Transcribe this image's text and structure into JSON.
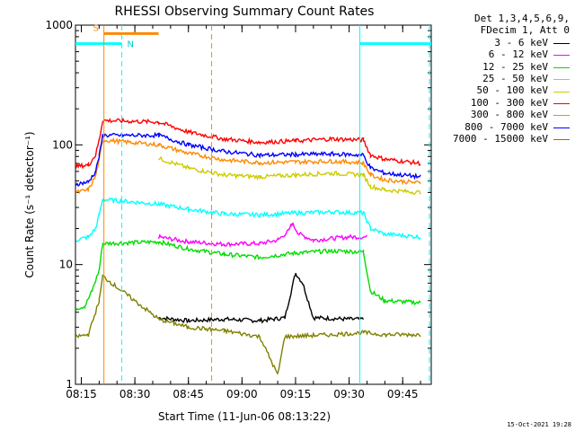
{
  "chart_data": {
    "type": "line",
    "title": "RHESSI Observing Summary Count Rates",
    "xlabel": "Start Time (11-Jun-06 08:13:22)",
    "ylabel": "Count Rate (s⁻¹ detector⁻¹)",
    "yscale": "log",
    "ylim": [
      1,
      1000
    ],
    "xlim": [
      "08:13:22",
      "09:53:00"
    ],
    "x_ticks": [
      "08:15",
      "08:30",
      "08:45",
      "09:00",
      "09:15",
      "09:30",
      "09:45"
    ],
    "y_ticks": [
      1,
      10,
      100,
      1000
    ],
    "y_tick_labels": [
      "1",
      "10",
      "100",
      "1000"
    ],
    "legend_header": [
      "Det 1,3,4,5,6,9,",
      "FDecim 1, Att 0"
    ],
    "legend_position": "right",
    "series": [
      {
        "name": "3 - 6 keV",
        "color": "#000000",
        "points": [
          [
            "08:13:30",
            null
          ],
          [
            "08:36:40",
            3.6
          ],
          [
            "08:45",
            3.4
          ],
          [
            "08:55",
            3.5
          ],
          [
            "09:05",
            3.4
          ],
          [
            "09:12",
            3.6
          ],
          [
            "09:15",
            8.5
          ],
          [
            "09:17",
            7.0
          ],
          [
            "09:20",
            3.6
          ],
          [
            "09:30",
            3.5
          ],
          [
            "09:34",
            3.5
          ]
        ]
      },
      {
        "name": "6 - 12 keV",
        "color": "#ff00ff",
        "points": [
          [
            "08:13:30",
            null
          ],
          [
            "08:36:40",
            17
          ],
          [
            "08:45",
            15.5
          ],
          [
            "08:55",
            14.8
          ],
          [
            "09:05",
            15
          ],
          [
            "09:10",
            16
          ],
          [
            "09:13",
            19
          ],
          [
            "09:14",
            22
          ],
          [
            "09:16",
            18
          ],
          [
            "09:20",
            16
          ],
          [
            "09:30",
            17
          ],
          [
            "09:35",
            17
          ]
        ]
      },
      {
        "name": "12 - 25 keV",
        "color": "#00dd00",
        "points": [
          [
            "08:13:30",
            4.3
          ],
          [
            "08:16",
            4.5
          ],
          [
            "08:18",
            6
          ],
          [
            "08:20",
            9
          ],
          [
            "08:21",
            15
          ],
          [
            "08:36:40",
            15.5
          ],
          [
            "08:45",
            13.5
          ],
          [
            "08:55",
            12.2
          ],
          [
            "09:05",
            11.5
          ],
          [
            "09:15",
            12.5
          ],
          [
            "09:25",
            13
          ],
          [
            "09:34",
            12.8
          ],
          [
            "09:36",
            6
          ],
          [
            "09:40",
            5
          ],
          [
            "09:50",
            4.8
          ]
        ]
      },
      {
        "name": "25 - 50 keV",
        "color": "#00ffff",
        "points": [
          [
            "08:13:30",
            16
          ],
          [
            "08:17",
            17
          ],
          [
            "08:19",
            20
          ],
          [
            "08:20",
            26
          ],
          [
            "08:21",
            35
          ],
          [
            "08:36:40",
            32
          ],
          [
            "08:45",
            29
          ],
          [
            "08:55",
            26.5
          ],
          [
            "09:05",
            26
          ],
          [
            "09:15",
            27
          ],
          [
            "09:25",
            27.5
          ],
          [
            "09:34",
            27
          ],
          [
            "09:36",
            20
          ],
          [
            "09:40",
            18
          ],
          [
            "09:50",
            17
          ]
        ]
      },
      {
        "name": "50 - 100 keV",
        "color": "#cccc00",
        "points": [
          [
            "08:36:40",
            77
          ],
          [
            "08:45",
            64
          ],
          [
            "08:55",
            56
          ],
          [
            "09:05",
            54
          ],
          [
            "09:15",
            56
          ],
          [
            "09:25",
            58
          ],
          [
            "09:34",
            56
          ],
          [
            "09:36",
            45
          ],
          [
            "09:40",
            42
          ],
          [
            "09:50",
            40
          ]
        ]
      },
      {
        "name": "100 - 300 keV",
        "color": "#ff0000",
        "points": [
          [
            "08:13:30",
            66
          ],
          [
            "08:17",
            68
          ],
          [
            "08:19",
            82
          ],
          [
            "08:20",
            110
          ],
          [
            "08:21",
            160
          ],
          [
            "08:36:40",
            155
          ],
          [
            "08:45",
            128
          ],
          [
            "08:55",
            112
          ],
          [
            "09:05",
            105
          ],
          [
            "09:15",
            108
          ],
          [
            "09:25",
            112
          ],
          [
            "09:34",
            110
          ],
          [
            "09:36",
            82
          ],
          [
            "09:40",
            76
          ],
          [
            "09:50",
            70
          ]
        ]
      },
      {
        "name": "300 - 800 keV",
        "color": "#ff8800",
        "points": [
          [
            "08:13:30",
            40
          ],
          [
            "08:17",
            42
          ],
          [
            "08:19",
            55
          ],
          [
            "08:20",
            75
          ],
          [
            "08:21",
            110
          ],
          [
            "08:36:40",
            100
          ],
          [
            "08:45",
            85
          ],
          [
            "08:55",
            75
          ],
          [
            "09:05",
            71
          ],
          [
            "09:15",
            72
          ],
          [
            "09:25",
            73
          ],
          [
            "09:34",
            71
          ],
          [
            "09:36",
            56
          ],
          [
            "09:40",
            51
          ],
          [
            "09:50",
            48
          ]
        ]
      },
      {
        "name": "800 - 7000 keV",
        "color": "#0000ff",
        "points": [
          [
            "08:13:30",
            47
          ],
          [
            "08:17",
            49
          ],
          [
            "08:19",
            60
          ],
          [
            "08:20",
            80
          ],
          [
            "08:21",
            120
          ],
          [
            "08:36:40",
            120
          ],
          [
            "08:45",
            100
          ],
          [
            "08:55",
            88
          ],
          [
            "09:05",
            82
          ],
          [
            "09:15",
            83
          ],
          [
            "09:25",
            84
          ],
          [
            "09:34",
            82
          ],
          [
            "09:36",
            64
          ],
          [
            "09:40",
            58
          ],
          [
            "09:50",
            54
          ]
        ]
      },
      {
        "name": "7000 - 15000 keV",
        "color": "#808000",
        "points": [
          [
            "08:13:30",
            2.5
          ],
          [
            "08:17",
            2.6
          ],
          [
            "08:20",
            5
          ],
          [
            "08:21",
            8
          ],
          [
            "08:36:40",
            3.5
          ],
          [
            "08:45",
            3.0
          ],
          [
            "08:55",
            2.8
          ],
          [
            "09:05",
            2.5
          ],
          [
            "09:10",
            1.2
          ],
          [
            "09:12",
            2.5
          ],
          [
            "09:25",
            2.6
          ],
          [
            "09:34",
            2.7
          ],
          [
            "09:40",
            2.6
          ],
          [
            "09:50",
            2.6
          ]
        ]
      }
    ],
    "annotations": {
      "orange_bar": {
        "label": "S",
        "color": "#ff8800",
        "from": "08:21:20",
        "to": "08:36:40",
        "value": 850
      },
      "cyan_bars": [
        {
          "label": "N",
          "color": "#00ffff",
          "from": "08:13:22",
          "to": "08:26:20",
          "value": 700
        },
        {
          "from": "09:33:00",
          "to": "09:53:00",
          "value": 700
        }
      ],
      "cyan_vlines": [
        "08:26:20",
        "09:33:00",
        "09:52:30"
      ],
      "orange_vlines": [
        "08:21:20",
        "08:51:30"
      ]
    }
  },
  "timestamp": "15-Oct-2021 19:28"
}
